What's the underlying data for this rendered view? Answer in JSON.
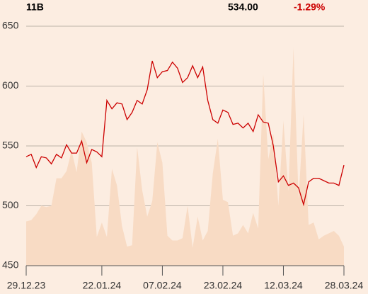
{
  "header": {
    "symbol": "11B",
    "price": "534.00",
    "change": "-1.29%"
  },
  "chart_data": {
    "type": "line",
    "categories": [
      "29.12.23",
      null,
      null,
      null,
      null,
      null,
      null,
      null,
      null,
      null,
      null,
      null,
      null,
      null,
      null,
      "22.01.24",
      null,
      null,
      null,
      null,
      null,
      null,
      null,
      null,
      null,
      null,
      null,
      "07.02.24",
      null,
      null,
      null,
      null,
      null,
      null,
      null,
      null,
      null,
      null,
      null,
      "23.02.24",
      null,
      null,
      null,
      null,
      null,
      null,
      null,
      null,
      null,
      null,
      null,
      "12.03.24",
      null,
      null,
      null,
      null,
      null,
      null,
      null,
      null,
      null,
      null,
      null,
      "28.03.24"
    ],
    "series": [
      {
        "type": "area",
        "color": "#f8dbc4",
        "values": [
          487,
          488,
          493,
          500,
          499,
          500,
          523,
          523,
          529,
          546,
          528,
          562,
          553,
          536,
          474,
          486,
          474,
          531,
          517,
          483,
          466,
          467,
          549,
          513,
          491,
          504,
          553,
          536,
          475,
          471,
          471,
          473,
          500,
          465,
          491,
          471,
          479,
          527,
          556,
          505,
          503,
          475,
          477,
          484,
          477,
          494,
          481,
          610,
          539,
          560,
          500,
          571,
          512,
          632,
          506,
          576,
          484,
          486,
          472,
          475,
          477,
          479,
          475,
          466
        ]
      },
      {
        "type": "line",
        "color": "#cc0000",
        "values": [
          541,
          543,
          532,
          541,
          540,
          535,
          543,
          540,
          551,
          544,
          544,
          554,
          536,
          547,
          545,
          541,
          588,
          581,
          586,
          585,
          572,
          578,
          588,
          585,
          597,
          621,
          607,
          612,
          613,
          620,
          615,
          603,
          607,
          617,
          607,
          616,
          588,
          572,
          569,
          580,
          578,
          568,
          569,
          565,
          569,
          562,
          576,
          570,
          569,
          550,
          520,
          525,
          517,
          519,
          515,
          501,
          520,
          523,
          523,
          521,
          519,
          519,
          517,
          534
        ]
      }
    ],
    "ylim": [
      450,
      650
    ],
    "yticks": [
      450,
      500,
      550,
      600,
      650
    ],
    "grid": true
  }
}
